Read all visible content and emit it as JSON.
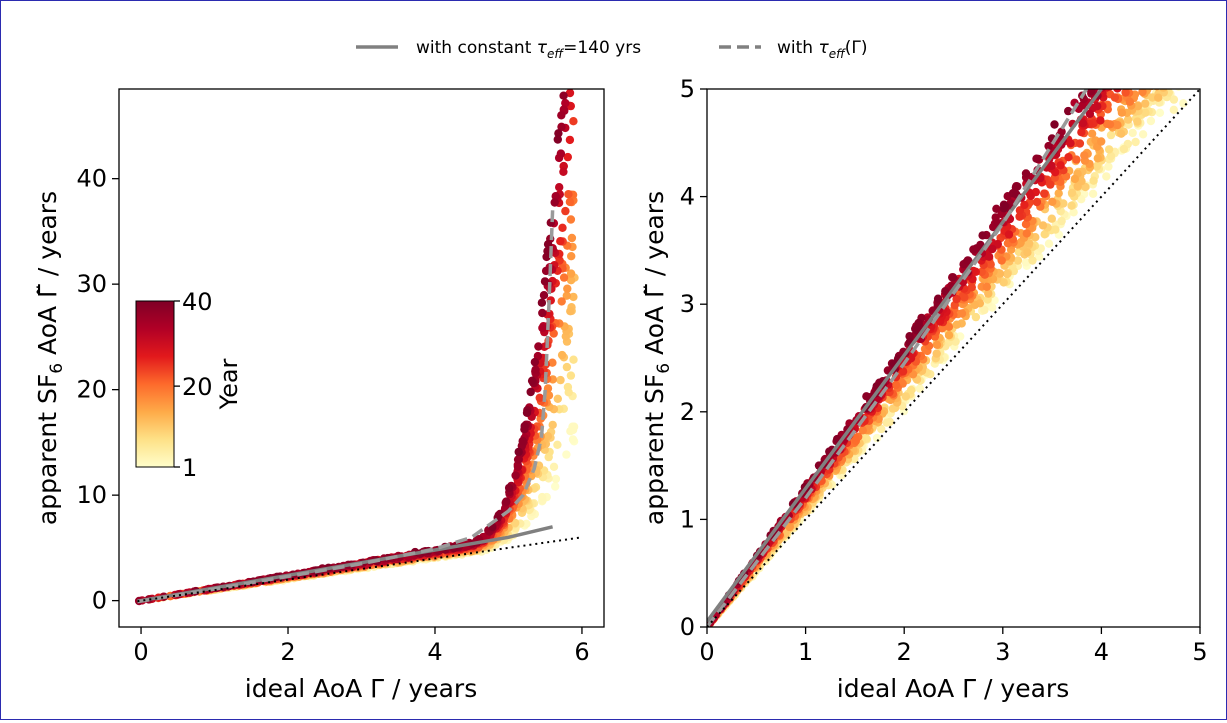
{
  "legend": {
    "placement": "top-center",
    "entries": [
      {
        "id": "constant",
        "label_prefix": "with constant ",
        "label_tau": "τ",
        "label_sub": "eff",
        "label_suffix": "=140 yrs",
        "style": "solid",
        "color": "#808080"
      },
      {
        "id": "variable",
        "label_prefix": "with ",
        "label_tau": "τ",
        "label_sub": "eff",
        "label_suffix": "(Γ)",
        "style": "dashed",
        "color": "#808080"
      }
    ]
  },
  "colorbar": {
    "label": "Year",
    "ticks": [
      "40",
      "20",
      "1"
    ],
    "tick_values": [
      40,
      20,
      1
    ],
    "range": [
      1,
      40
    ],
    "colormap": [
      "#fffecb",
      "#fee187",
      "#feaa48",
      "#fd6a2b",
      "#e2191c",
      "#b10026",
      "#7f0026"
    ]
  },
  "chart_data": [
    {
      "type": "scatter",
      "panel": "left",
      "xlabel": "ideal AoA Γ / years",
      "ylabel_parts": {
        "pre": "apparent SF",
        "sub": "6",
        "post": " AoA Γ̃ / years"
      },
      "xlim": [
        -0.3,
        6.3
      ],
      "ylim": [
        -2.5,
        48.5
      ],
      "xticks": [
        "0",
        "2",
        "4",
        "6"
      ],
      "xtick_values": [
        0,
        2,
        4,
        6
      ],
      "yticks": [
        "0",
        "10",
        "20",
        "30",
        "40"
      ],
      "ytick_values": [
        0,
        10,
        20,
        30,
        40
      ],
      "grid": false,
      "series": [
        {
          "name": "with constant τ_eff=140 yrs",
          "style": "solid",
          "x": [
            -0.05,
            0.5,
            1,
            1.5,
            2,
            2.5,
            3,
            3.5,
            4,
            4.5,
            5,
            5.6
          ],
          "y": [
            -0.05,
            0.6,
            1.2,
            1.8,
            2.4,
            3.0,
            3.6,
            4.2,
            4.8,
            5.4,
            6.0,
            7.0
          ]
        },
        {
          "name": "with τ_eff(Γ)",
          "style": "dashed",
          "x": [
            -0.05,
            1,
            2,
            3,
            4,
            4.5,
            5.0,
            5.2,
            5.35,
            5.45,
            5.5,
            5.55,
            5.6
          ],
          "y": [
            -0.1,
            1.1,
            2.3,
            3.5,
            4.9,
            6.0,
            8.5,
            10.0,
            12.5,
            15.5,
            20.0,
            28.0,
            37.0
          ]
        },
        {
          "name": "1:1",
          "style": "dotted",
          "x": [
            -0.05,
            6.0
          ],
          "y": [
            -0.05,
            6.0
          ]
        }
      ]
    },
    {
      "type": "scatter",
      "panel": "right",
      "xlabel": "ideal AoA Γ / years",
      "ylabel_parts": {
        "pre": "apparent SF",
        "sub": "6",
        "post": " AoA Γ̃ / years"
      },
      "xlim": [
        0,
        5
      ],
      "ylim": [
        0,
        5
      ],
      "xticks": [
        "0",
        "1",
        "2",
        "3",
        "4",
        "5"
      ],
      "xtick_values": [
        0,
        1,
        2,
        3,
        4,
        5
      ],
      "yticks": [
        "0",
        "1",
        "2",
        "3",
        "4",
        "5"
      ],
      "ytick_values": [
        0,
        1,
        2,
        3,
        4,
        5
      ],
      "grid": false,
      "series": [
        {
          "name": "with constant τ_eff=140 yrs",
          "style": "solid",
          "x": [
            0,
            4.0
          ],
          "y": [
            0.05,
            5.0
          ]
        },
        {
          "name": "with τ_eff(Γ)",
          "style": "dashed",
          "x": [
            0,
            1,
            2,
            3,
            3.85
          ],
          "y": [
            0,
            1.2,
            2.45,
            3.75,
            5.0
          ]
        },
        {
          "name": "1:1",
          "style": "dotted",
          "x": [
            0,
            5
          ],
          "y": [
            0,
            5
          ]
        }
      ]
    }
  ]
}
